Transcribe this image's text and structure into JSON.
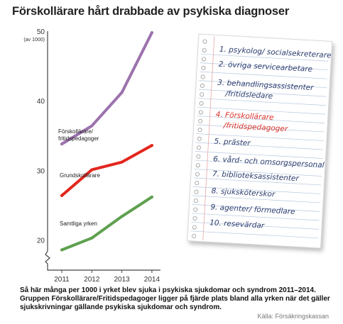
{
  "title": "Förskollärare hårt drabbade av psykiska diagnoser",
  "caption": "Så här många per 1000 i yrket blev sjuka i psykiska sjukdomar och syndrom 2011–2014. Gruppen Förskollärare/Fritidspedagoger ligger på fjärde plats bland alla yrken när det gäller sjukskrivningar gällande psykiska sjukdomar och syndrom.",
  "source": "Källa: Försäkringskassan",
  "chart_data": {
    "type": "line",
    "ylabel": "(av 1000)",
    "ylim": [
      16,
      50
    ],
    "yticks": [
      20,
      30,
      40,
      50
    ],
    "x": [
      "2011",
      "2012",
      "2013",
      "2014"
    ],
    "series": [
      {
        "name": "Förskollärare/ fritidspedagoger",
        "label_lines": [
          "Förskollärare/",
          "fritidspedagoger"
        ],
        "color": "#9b72ad",
        "values": [
          33.8,
          36.4,
          41.2,
          49.8
        ]
      },
      {
        "name": "Grundskollärare",
        "label_lines": [
          "Grundskollärare"
        ],
        "color": "#e3261d",
        "values": [
          26.4,
          30.1,
          31.2,
          33.6
        ]
      },
      {
        "name": "Samtliga yrken",
        "label_lines": [
          "Samtliga yrken"
        ],
        "color": "#5ea04f",
        "values": [
          18.6,
          20.3,
          23.4,
          26.2
        ]
      }
    ]
  },
  "notepad": {
    "items": [
      {
        "text": "1. psykolog/ socialsekreterare",
        "color": "#2a3c6e"
      },
      {
        "text": "2. övriga servicearbetare",
        "color": "#2a3c6e"
      },
      {
        "text": "3. behandlingsassistenter",
        "color": "#2a3c6e"
      },
      {
        "text": "/fritidsledare",
        "color": "#2a3c6e"
      },
      {
        "text": "4. Förskollärare",
        "color": "#d9332a"
      },
      {
        "text": "/fritidspedagoger",
        "color": "#d9332a"
      },
      {
        "text": "5. präster",
        "color": "#2a3c6e"
      },
      {
        "text": "6. vård- och omsorgspersonal",
        "color": "#2a3c6e"
      },
      {
        "text": "7. biblioteksassistenter",
        "color": "#2a3c6e"
      },
      {
        "text": "8. sjuksköterskor",
        "color": "#2a3c6e"
      },
      {
        "text": "9. agenter/ förmedlare",
        "color": "#2a3c6e"
      },
      {
        "text": "10. resevärdar",
        "color": "#2a3c6e"
      }
    ]
  }
}
